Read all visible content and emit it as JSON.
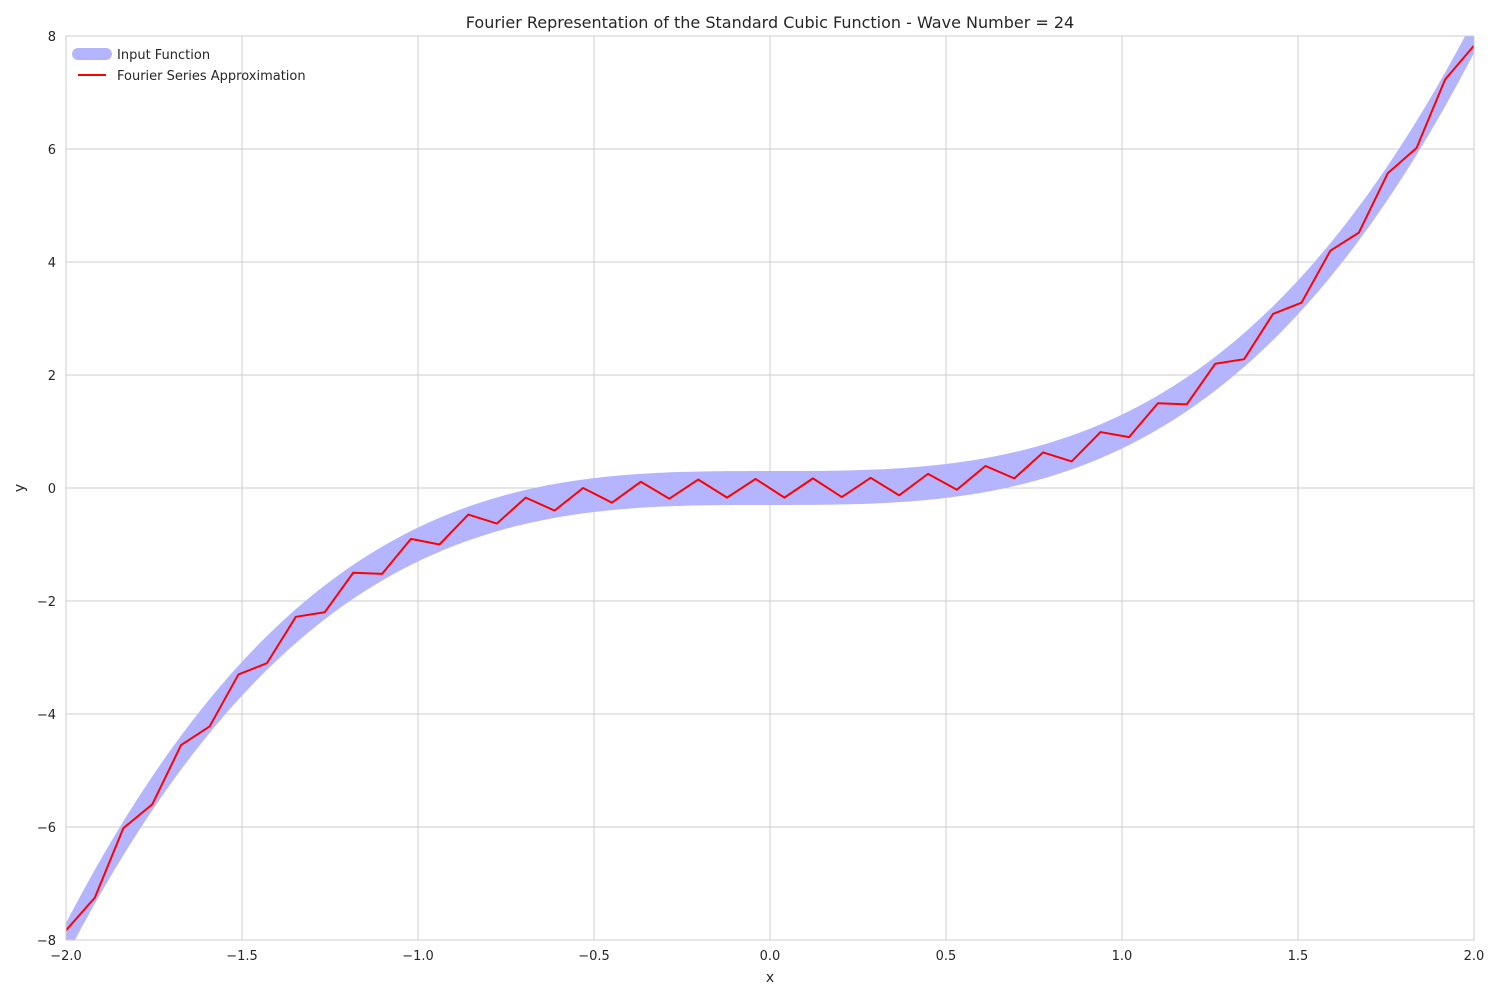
{
  "chart_data": {
    "type": "line",
    "title": "Fourier Representation of the Standard Cubic Function - Wave Number = 24",
    "xlabel": "x",
    "ylabel": "y",
    "xlim": [
      -2.0,
      2.0
    ],
    "ylim": [
      -8,
      8
    ],
    "xticks": [
      -2.0,
      -1.5,
      -1.0,
      -0.5,
      0.0,
      0.5,
      1.0,
      1.5,
      2.0
    ],
    "xtick_labels": [
      "−2.0",
      "−1.5",
      "−1.0",
      "−0.5",
      "0.0",
      "0.5",
      "1.0",
      "1.5",
      "2.0"
    ],
    "yticks": [
      -8,
      -6,
      -4,
      -2,
      0,
      2,
      4,
      6,
      8
    ],
    "ytick_labels": [
      "−8",
      "−6",
      "−4",
      "−2",
      "0",
      "2",
      "4",
      "6",
      "8"
    ],
    "grid": true,
    "legend_position": "top-left",
    "series": [
      {
        "name": "Input Function",
        "color": "#b5b5ff",
        "function": "x^3",
        "x_range": [
          -2.0,
          2.0
        ],
        "band_halfwidth_y": 0.3
      },
      {
        "name": "Fourier Series Approximation",
        "color": "#ff0000",
        "x": [
          -2.0,
          -1.918,
          -1.837,
          -1.755,
          -1.673,
          -1.592,
          -1.51,
          -1.429,
          -1.347,
          -1.265,
          -1.184,
          -1.102,
          -1.02,
          -0.939,
          -0.857,
          -0.776,
          -0.694,
          -0.612,
          -0.531,
          -0.449,
          -0.367,
          -0.286,
          -0.204,
          -0.122,
          -0.041,
          0.041,
          0.122,
          0.204,
          0.286,
          0.367,
          0.449,
          0.531,
          0.612,
          0.694,
          0.776,
          0.857,
          0.939,
          1.02,
          1.102,
          1.184,
          1.265,
          1.347,
          1.429,
          1.51,
          1.592,
          1.673,
          1.755,
          1.837,
          1.918,
          2.0
        ],
        "y": [
          -7.83,
          -7.25,
          -6.02,
          -5.6,
          -4.55,
          -4.22,
          -3.3,
          -3.1,
          -2.28,
          -2.2,
          -1.5,
          -1.52,
          -0.9,
          -1.0,
          -0.47,
          -0.63,
          -0.17,
          -0.4,
          0.0,
          -0.26,
          0.11,
          -0.19,
          0.15,
          -0.17,
          0.16,
          -0.17,
          0.17,
          -0.16,
          0.18,
          -0.13,
          0.25,
          -0.03,
          0.39,
          0.17,
          0.63,
          0.47,
          0.99,
          0.9,
          1.5,
          1.48,
          2.2,
          2.28,
          3.08,
          3.28,
          4.2,
          4.52,
          5.57,
          6.02,
          7.23,
          7.83
        ]
      }
    ]
  }
}
